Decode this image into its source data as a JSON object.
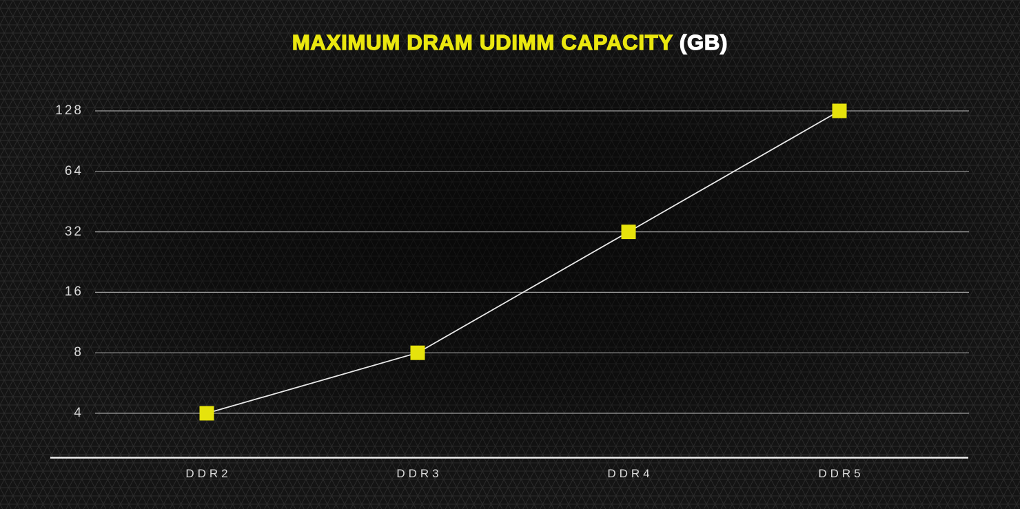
{
  "title": {
    "main": "MAXIMUM DRAM UDIMM CAPACITY",
    "unit": "(GB)"
  },
  "chart_data": {
    "type": "line",
    "title": "MAXIMUM DRAM UDIMM CAPACITY (GB)",
    "categories": [
      "DDR2",
      "DDR3",
      "DDR4",
      "DDR5"
    ],
    "series": [
      {
        "name": "Maximum DRAM UDIMM capacity (GB)",
        "values": [
          4,
          8,
          32,
          128
        ]
      }
    ],
    "yticks": [
      128,
      64,
      32,
      16,
      8,
      4
    ],
    "y_scale": "log2",
    "ylim": [
      4,
      128
    ],
    "xlabel": "",
    "ylabel": "",
    "grid": "horizontal",
    "legend": "none",
    "marker": "square",
    "colors": {
      "marker": "#e6e30c",
      "title": "#eae70f",
      "title_unit": "#ffffff",
      "line": "#e8e8e8",
      "gridline": "#9d9d9d",
      "axis": "#efefef",
      "tick_label": "#d9d9d9",
      "background": "#141414",
      "pattern_line": "#2b2b2b"
    }
  }
}
